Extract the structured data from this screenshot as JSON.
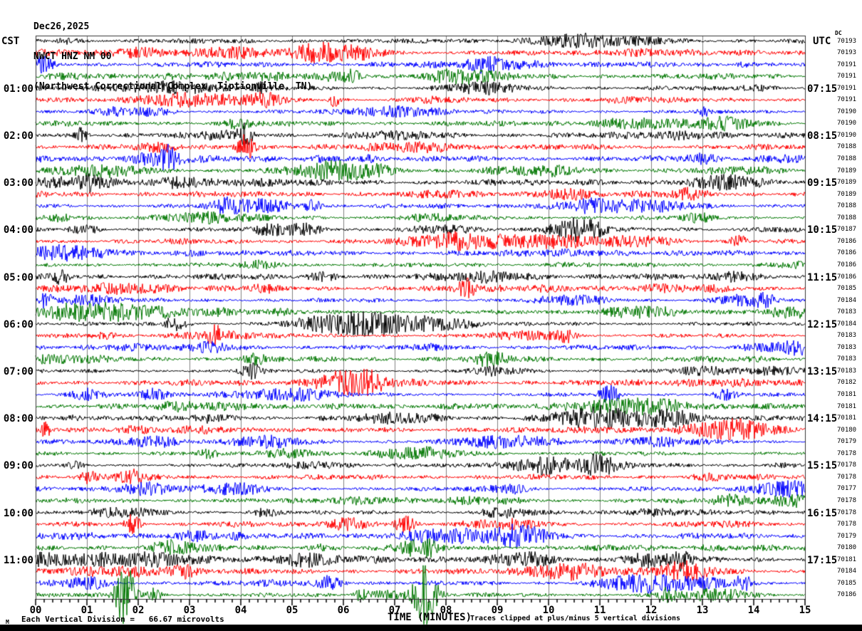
{
  "title": {
    "date": "Dec26,2025",
    "station": "NWCT HNZ NM 00",
    "location": "(Northwest Correctional Complex, Tiptionville, TN)"
  },
  "left_axis": {
    "timezone_label": "CST"
  },
  "right_axis": {
    "timezone_label": "UTC",
    "dc_column_label": "DC"
  },
  "x_axis": {
    "title": "TIME (MINUTES)",
    "tick_labels": [
      "00",
      "01",
      "02",
      "03",
      "04",
      "05",
      "06",
      "07",
      "08",
      "09",
      "10",
      "11",
      "12",
      "13",
      "14",
      "15"
    ]
  },
  "footer": {
    "left_symbol": "M",
    "scale_note": "Each Vertical Division =   66.67 microvolts",
    "clip_note": "Traces clipped at plus/minus 5 vertical divisions"
  },
  "chart_data": {
    "type": "line",
    "subtype": "helicorder-seismogram",
    "title": "NWCT HNZ NM 00 helicorder, Dec26,2025",
    "xlabel": "TIME (MINUTES)",
    "x_range_minutes": [
      0,
      15
    ],
    "minor_ticks_per_minute": 6,
    "row_count": 48,
    "minutes_per_row": 15,
    "clip_divisions": 5,
    "microvolts_per_division": 66.67,
    "grid": "vertical lines at each minute",
    "colors_cycle": {
      "black": "#000000",
      "red": "#ff0000",
      "blue": "#0000ff",
      "green": "#007700"
    },
    "grid_color": "#808080",
    "border_color": "#333333",
    "rows": [
      {
        "color": "black",
        "dc": "70193",
        "cst": "",
        "utc": ""
      },
      {
        "color": "red",
        "dc": "70193",
        "cst": "",
        "utc": ""
      },
      {
        "color": "blue",
        "dc": "70191",
        "cst": "",
        "utc": ""
      },
      {
        "color": "green",
        "dc": "70191",
        "cst": "",
        "utc": ""
      },
      {
        "color": "black",
        "dc": "70191",
        "cst": "01:00",
        "utc": "07:15"
      },
      {
        "color": "red",
        "dc": "70191",
        "cst": "",
        "utc": ""
      },
      {
        "color": "blue",
        "dc": "70190",
        "cst": "",
        "utc": ""
      },
      {
        "color": "green",
        "dc": "70190",
        "cst": "",
        "utc": ""
      },
      {
        "color": "black",
        "dc": "70190",
        "cst": "02:00",
        "utc": "08:15"
      },
      {
        "color": "red",
        "dc": "70188",
        "cst": "",
        "utc": ""
      },
      {
        "color": "blue",
        "dc": "70188",
        "cst": "",
        "utc": ""
      },
      {
        "color": "green",
        "dc": "70189",
        "cst": "",
        "utc": ""
      },
      {
        "color": "black",
        "dc": "70189",
        "cst": "03:00",
        "utc": "09:15"
      },
      {
        "color": "red",
        "dc": "70189",
        "cst": "",
        "utc": ""
      },
      {
        "color": "blue",
        "dc": "70188",
        "cst": "",
        "utc": ""
      },
      {
        "color": "green",
        "dc": "70188",
        "cst": "",
        "utc": ""
      },
      {
        "color": "black",
        "dc": "70187",
        "cst": "04:00",
        "utc": "10:15"
      },
      {
        "color": "red",
        "dc": "70186",
        "cst": "",
        "utc": ""
      },
      {
        "color": "blue",
        "dc": "70186",
        "cst": "",
        "utc": ""
      },
      {
        "color": "green",
        "dc": "70186",
        "cst": "",
        "utc": ""
      },
      {
        "color": "black",
        "dc": "70186",
        "cst": "05:00",
        "utc": "11:15"
      },
      {
        "color": "red",
        "dc": "70185",
        "cst": "",
        "utc": ""
      },
      {
        "color": "blue",
        "dc": "70184",
        "cst": "",
        "utc": ""
      },
      {
        "color": "green",
        "dc": "70183",
        "cst": "",
        "utc": ""
      },
      {
        "color": "black",
        "dc": "70184",
        "cst": "06:00",
        "utc": "12:15"
      },
      {
        "color": "red",
        "dc": "70183",
        "cst": "",
        "utc": ""
      },
      {
        "color": "blue",
        "dc": "70183",
        "cst": "",
        "utc": ""
      },
      {
        "color": "green",
        "dc": "70183",
        "cst": "",
        "utc": ""
      },
      {
        "color": "black",
        "dc": "70183",
        "cst": "07:00",
        "utc": "13:15"
      },
      {
        "color": "red",
        "dc": "70182",
        "cst": "",
        "utc": ""
      },
      {
        "color": "blue",
        "dc": "70181",
        "cst": "",
        "utc": ""
      },
      {
        "color": "green",
        "dc": "70181",
        "cst": "",
        "utc": ""
      },
      {
        "color": "black",
        "dc": "70181",
        "cst": "08:00",
        "utc": "14:15"
      },
      {
        "color": "red",
        "dc": "70180",
        "cst": "",
        "utc": ""
      },
      {
        "color": "blue",
        "dc": "70179",
        "cst": "",
        "utc": ""
      },
      {
        "color": "green",
        "dc": "70178",
        "cst": "",
        "utc": ""
      },
      {
        "color": "black",
        "dc": "70178",
        "cst": "09:00",
        "utc": "15:15"
      },
      {
        "color": "red",
        "dc": "70178",
        "cst": "",
        "utc": ""
      },
      {
        "color": "blue",
        "dc": "70177",
        "cst": "",
        "utc": ""
      },
      {
        "color": "green",
        "dc": "70178",
        "cst": "",
        "utc": ""
      },
      {
        "color": "black",
        "dc": "70178",
        "cst": "10:00",
        "utc": "16:15"
      },
      {
        "color": "red",
        "dc": "70178",
        "cst": "",
        "utc": ""
      },
      {
        "color": "blue",
        "dc": "70179",
        "cst": "",
        "utc": ""
      },
      {
        "color": "green",
        "dc": "70180",
        "cst": "",
        "utc": ""
      },
      {
        "color": "black",
        "dc": "70181",
        "cst": "11:00",
        "utc": "17:15"
      },
      {
        "color": "red",
        "dc": "70184",
        "cst": "",
        "utc": ""
      },
      {
        "color": "blue",
        "dc": "70185",
        "cst": "",
        "utc": ""
      },
      {
        "color": "green",
        "dc": "70186",
        "cst": "",
        "utc": ""
      }
    ],
    "notable_events": [
      {
        "row": 9,
        "minute": 0.9,
        "amp_divisions": 1.3,
        "width_minutes": 0.15
      },
      {
        "row": 9,
        "minute": 4.1,
        "amp_divisions": 1.6,
        "width_minutes": 0.2
      },
      {
        "row": 10,
        "minute": 4.1,
        "amp_divisions": 2.2,
        "width_minutes": 0.25
      },
      {
        "row": 11,
        "minute": 2.6,
        "amp_divisions": 1.4,
        "width_minutes": 0.2
      },
      {
        "row": 13,
        "minute": 1.0,
        "amp_divisions": 1.1,
        "width_minutes": 0.15
      },
      {
        "row": 15,
        "minute": 5.4,
        "amp_divisions": 1.2,
        "width_minutes": 0.2
      },
      {
        "row": 17,
        "minute": 10.6,
        "amp_divisions": 1.3,
        "width_minutes": 0.4
      },
      {
        "row": 18,
        "minute": 13.7,
        "amp_divisions": 1.3,
        "width_minutes": 0.2
      },
      {
        "row": 21,
        "minute": 0.5,
        "amp_divisions": 1.2,
        "width_minutes": 0.2
      },
      {
        "row": 22,
        "minute": 8.4,
        "amp_divisions": 1.6,
        "width_minutes": 0.25
      },
      {
        "row": 23,
        "minute": 0.2,
        "amp_divisions": 1.3,
        "width_minutes": 0.15
      },
      {
        "row": 25,
        "minute": 2.7,
        "amp_divisions": 1.3,
        "width_minutes": 0.3
      },
      {
        "row": 26,
        "minute": 3.5,
        "amp_divisions": 1.3,
        "width_minutes": 0.2
      },
      {
        "row": 29,
        "minute": 4.2,
        "amp_divisions": 1.2,
        "width_minutes": 0.3
      },
      {
        "row": 31,
        "minute": 11.2,
        "amp_divisions": 1.3,
        "width_minutes": 0.3
      },
      {
        "row": 33,
        "minute": 11.0,
        "amp_divisions": 1.7,
        "width_minutes": 1.3
      },
      {
        "row": 33,
        "minute": 12.4,
        "amp_divisions": 1.4,
        "width_minutes": 0.7
      },
      {
        "row": 34,
        "minute": 0.2,
        "amp_divisions": 1.5,
        "width_minutes": 0.15
      },
      {
        "row": 37,
        "minute": 11.0,
        "amp_divisions": 1.2,
        "width_minutes": 0.3
      },
      {
        "row": 42,
        "minute": 1.9,
        "amp_divisions": 1.6,
        "width_minutes": 0.2
      },
      {
        "row": 42,
        "minute": 7.2,
        "amp_divisions": 1.3,
        "width_minutes": 0.3
      },
      {
        "row": 44,
        "minute": 7.4,
        "amp_divisions": 1.3,
        "width_minutes": 0.4
      },
      {
        "row": 45,
        "minute": 12.6,
        "amp_divisions": 1.4,
        "width_minutes": 0.25
      },
      {
        "row": 47,
        "minute": 13.8,
        "amp_divisions": 1.5,
        "width_minutes": 0.2
      },
      {
        "row": 48,
        "minute": 1.75,
        "amp_divisions": 6,
        "width_minutes": 0.25
      },
      {
        "row": 48,
        "minute": 7.6,
        "amp_divisions": 6,
        "width_minutes": 0.3
      },
      {
        "row": 48,
        "minute": 12.3,
        "amp_divisions": 1.5,
        "width_minutes": 0.2
      }
    ]
  }
}
